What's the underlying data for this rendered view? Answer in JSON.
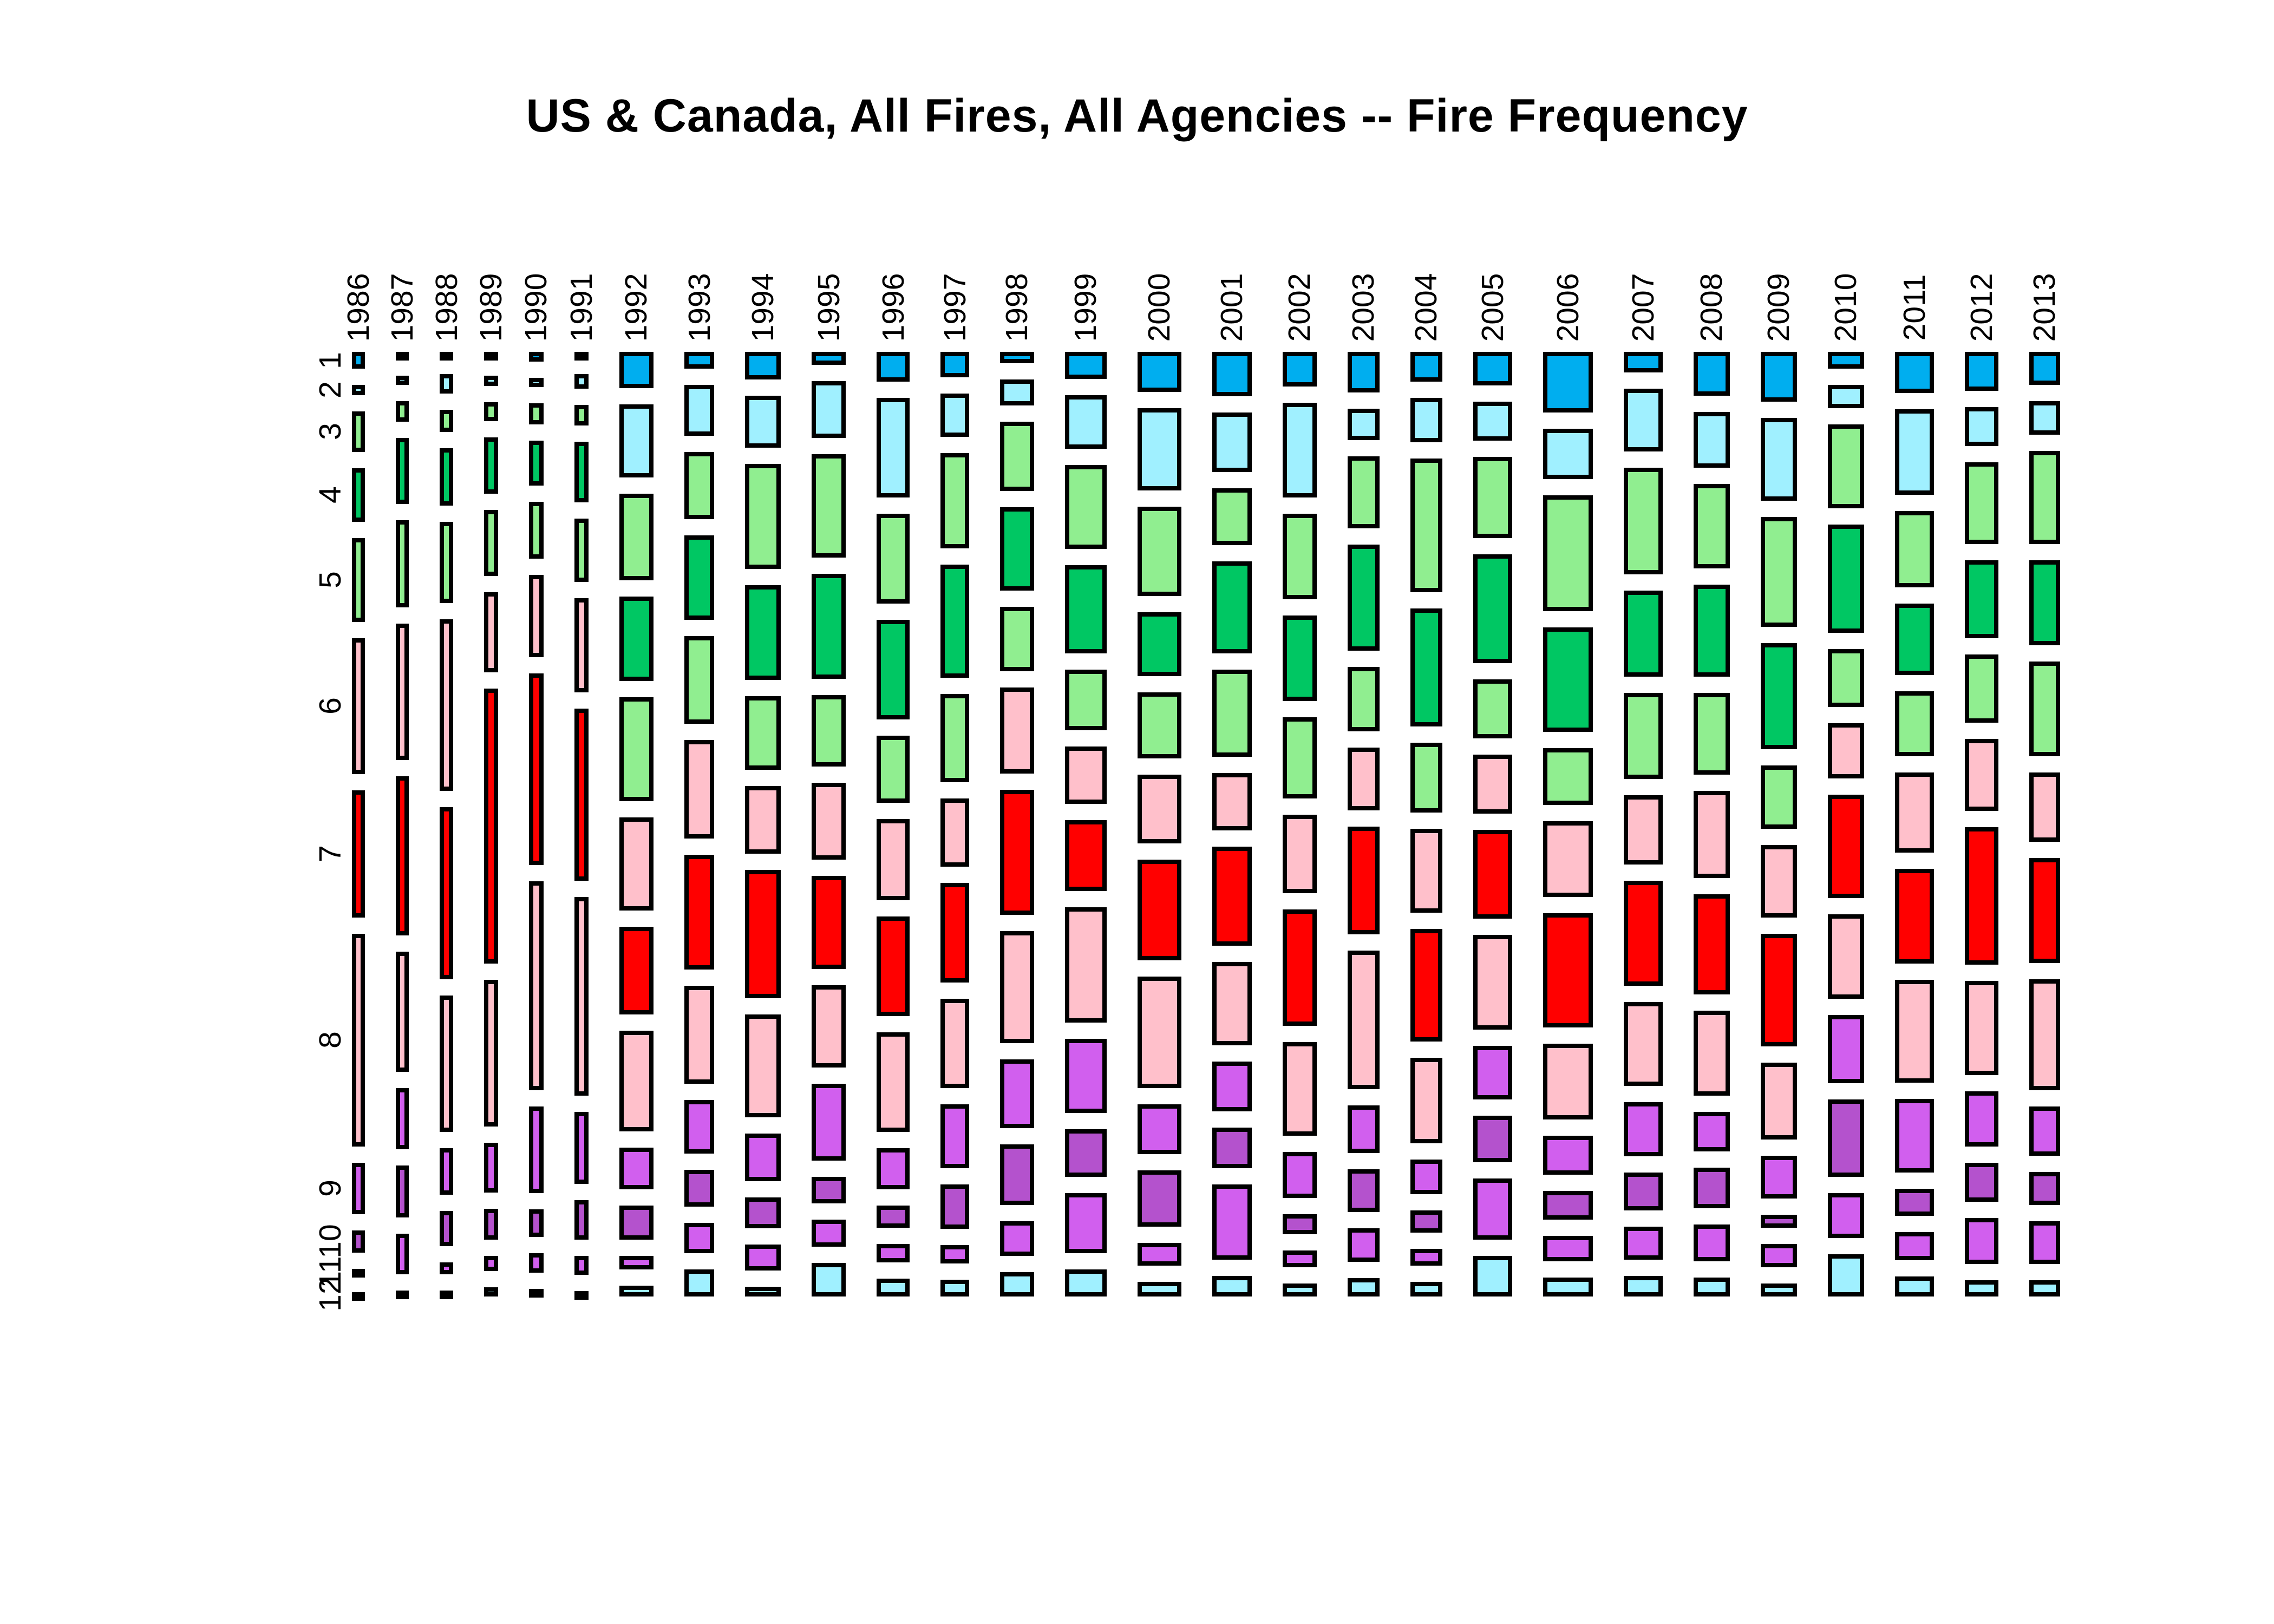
{
  "title": "US & Canada, All Fires, All Agencies -- Fire Frequency",
  "chart_data": {
    "type": "heatmap",
    "subtype": "mosaic",
    "title": "US & Canada, All Fires, All Agencies -- Fire Frequency",
    "xlabel": "",
    "ylabel": "",
    "x_categories": [
      "1986",
      "1987",
      "1988",
      "1989",
      "1990",
      "1991",
      "1992",
      "1993",
      "1994",
      "1995",
      "1996",
      "1997",
      "1998",
      "1999",
      "2000",
      "2001",
      "2002",
      "2003",
      "2004",
      "2005",
      "2006",
      "2007",
      "2008",
      "2009",
      "2010",
      "2011",
      "2012",
      "2013"
    ],
    "y_categories": [
      "1",
      "2",
      "3",
      "4",
      "5",
      "6",
      "7",
      "8",
      "9",
      "10",
      "11",
      "12"
    ],
    "representation": "Column width is proportional to total fire count for the year; cell height is proportional to the percent of that year's fires occurring in each month (month 1 at top, month 12 at bottom). Axis labels are rotated 90 degrees.",
    "legend_position": "none",
    "grid": false,
    "cell_border_color": "#000000",
    "month_colors": [
      "#00AEEF",
      "#A0F0FF",
      "#90EE90",
      "#00C763",
      "#90EE90",
      "#FFC0CB",
      "#FF0000",
      "#FFC0CB",
      "#D15FEE",
      "#B452CD",
      "#D15FEE",
      "#A0F0FF"
    ],
    "years": [
      {
        "year": "1986",
        "relative_width": 24,
        "month_pct": [
          2.2,
          1.3,
          5.3,
          7.0,
          11.0,
          17.7,
          16.6,
          27.8,
          6.7,
          2.9,
          0.9,
          0.6
        ]
      },
      {
        "year": "1987",
        "relative_width": 25,
        "month_pct": [
          1.0,
          1.2,
          2.7,
          8.6,
          11.4,
          17.8,
          20.8,
          15.7,
          8.0,
          6.8,
          5.3,
          0.8
        ]
      },
      {
        "year": "1988",
        "relative_width": 25,
        "month_pct": [
          0.8,
          2.5,
          2.9,
          7.5,
          10.6,
          22.4,
          22.5,
          17.8,
          6.1,
          4.6,
          1.5,
          0.8
        ]
      },
      {
        "year": "1989",
        "relative_width": 26,
        "month_pct": [
          1.0,
          1.3,
          2.5,
          7.4,
          8.6,
          10.5,
          35.9,
          19.2,
          6.5,
          4.0,
          2.0,
          1.2
        ]
      },
      {
        "year": "1990",
        "relative_width": 28,
        "month_pct": [
          1.3,
          1.2,
          2.7,
          5.9,
          7.4,
          10.7,
          25.0,
          27.3,
          11.3,
          3.6,
          2.5,
          1.0
        ]
      },
      {
        "year": "1991",
        "relative_width": 26,
        "month_pct": [
          0.8,
          1.9,
          2.7,
          7.9,
          8.2,
          12.3,
          22.5,
          25.9,
          9.4,
          5.1,
          2.5,
          0.7
        ]
      },
      {
        "year": "1992",
        "relative_width": 64,
        "month_pct": [
          4.7,
          9.6,
          11.3,
          11.0,
          13.6,
          12.1,
          11.5,
          13.1,
          5.5,
          4.4,
          1.8,
          1.4
        ]
      },
      {
        "year": "1993",
        "relative_width": 56,
        "month_pct": [
          2.2,
          6.6,
          8.8,
          11.0,
          11.5,
          12.8,
          15.0,
          12.8,
          7.0,
          4.8,
          4.0,
          3.5
        ]
      },
      {
        "year": "1994",
        "relative_width": 67,
        "month_pct": [
          3.6,
          6.8,
          13.7,
          12.4,
          9.6,
          8.9,
          16.7,
          13.5,
          6.2,
          4.0,
          3.4,
          1.3
        ]
      },
      {
        "year": "1995",
        "relative_width": 64,
        "month_pct": [
          1.7,
          7.4,
          13.5,
          13.7,
          9.3,
          10.0,
          12.2,
          10.7,
          10.0,
          3.5,
          3.5,
          4.4
        ]
      },
      {
        "year": "1996",
        "relative_width": 62,
        "month_pct": [
          3.9,
          13.0,
          11.7,
          13.0,
          8.8,
          10.6,
          13.0,
          13.0,
          5.4,
          2.9,
          2.4,
          2.3
        ]
      },
      {
        "year": "1997",
        "relative_width": 53,
        "month_pct": [
          3.3,
          5.7,
          12.4,
          14.8,
          11.5,
          8.9,
          13.0,
          11.7,
          8.3,
          5.8,
          2.4,
          2.2
        ]
      },
      {
        "year": "1998",
        "relative_width": 64,
        "month_pct": [
          1.5,
          3.4,
          9.0,
          10.9,
          8.4,
          11.2,
          16.3,
          14.6,
          9.0,
          7.9,
          4.5,
          3.2
        ]
      },
      {
        "year": "1999",
        "relative_width": 78,
        "month_pct": [
          3.5,
          7.0,
          11.0,
          11.5,
          7.9,
          7.5,
          9.3,
          15.0,
          9.7,
          6.2,
          7.9,
          3.5
        ]
      },
      {
        "year": "2000",
        "relative_width": 82,
        "month_pct": [
          5.2,
          10.8,
          11.6,
          8.4,
          8.6,
          9.0,
          13.1,
          14.6,
          6.5,
          7.3,
          3.0,
          1.9
        ]
      },
      {
        "year": "2001",
        "relative_width": 74,
        "month_pct": [
          5.8,
          7.8,
          7.4,
          12.0,
          11.4,
          7.5,
          12.9,
          10.9,
          6.5,
          5.3,
          9.8,
          2.7
        ]
      },
      {
        "year": "2002",
        "relative_width": 64,
        "month_pct": [
          4.5,
          12.4,
          11.2,
          11.2,
          10.6,
          10.3,
          15.2,
          12.3,
          6.0,
          2.6,
          2.2,
          1.7
        ]
      },
      {
        "year": "2003",
        "relative_width": 60,
        "month_pct": [
          5.3,
          4.1,
          9.4,
          13.9,
          8.4,
          8.2,
          14.1,
          18.1,
          6.2,
          5.6,
          4.4,
          2.4
        ]
      },
      {
        "year": "2004",
        "relative_width": 60,
        "month_pct": [
          3.9,
          5.8,
          17.5,
          15.4,
          9.1,
          11.0,
          14.7,
          11.2,
          4.5,
          2.9,
          2.2,
          1.9
        ]
      },
      {
        "year": "2005",
        "relative_width": 73,
        "month_pct": [
          4.4,
          5.1,
          10.6,
          14.2,
          7.7,
          7.7,
          11.6,
          12.4,
          7.0,
          6.1,
          8.0,
          5.3
        ]
      },
      {
        "year": "2006",
        "relative_width": 93,
        "month_pct": [
          7.9,
          6.6,
          15.1,
          13.6,
          7.4,
          9.9,
          14.9,
          9.9,
          5.1,
          3.7,
          3.3,
          2.5
        ]
      },
      {
        "year": "2007",
        "relative_width": 73,
        "month_pct": [
          2.7,
          8.2,
          13.9,
          11.2,
          11.2,
          9.1,
          13.7,
          10.9,
          7.1,
          4.9,
          4.3,
          2.7
        ]
      },
      {
        "year": "2008",
        "relative_width": 68,
        "month_pct": [
          5.7,
          7.3,
          11.0,
          12.0,
          10.7,
          11.3,
          13.1,
          11.1,
          5.1,
          5.3,
          4.8,
          2.5
        ]
      },
      {
        "year": "2009",
        "relative_width": 68,
        "month_pct": [
          6.5,
          10.8,
          14.3,
          13.9,
          8.2,
          9.5,
          14.7,
          10.0,
          5.6,
          1.7,
          3.0,
          1.7
        ]
      },
      {
        "year": "2010",
        "relative_width": 68,
        "month_pct": [
          2.2,
          3.0,
          11.0,
          14.1,
          7.6,
          7.2,
          13.5,
          11.0,
          8.9,
          10.1,
          5.9,
          5.5
        ]
      },
      {
        "year": "2011",
        "relative_width": 73,
        "month_pct": [
          5.4,
          11.1,
          10.0,
          9.3,
          8.5,
          10.4,
          12.4,
          13.4,
          9.6,
          3.5,
          3.7,
          2.6
        ]
      },
      {
        "year": "2012",
        "relative_width": 63,
        "month_pct": [
          5.1,
          5.1,
          10.6,
          10.2,
          8.9,
          9.4,
          17.9,
          12.3,
          7.2,
          5.1,
          6.0,
          2.1
        ]
      },
      {
        "year": "2013",
        "relative_width": 58,
        "month_pct": [
          4.3,
          4.4,
          12.1,
          11.1,
          12.4,
          9.0,
          13.7,
          14.5,
          6.4,
          4.3,
          5.6,
          2.1
        ]
      }
    ]
  }
}
